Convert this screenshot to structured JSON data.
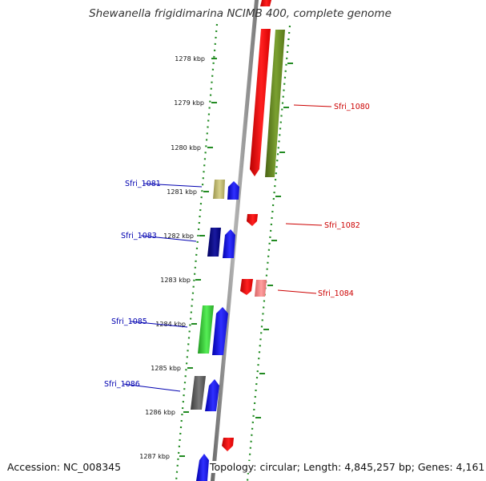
{
  "header": {
    "title": "Shewanella frigidimarina NCIMB 400, complete genome"
  },
  "footer": {
    "accession": "Accession: NC_008345",
    "topology": "Topology: circular; Length: 4,845,257 bp; Genes: 4,161"
  },
  "scale_marks": [
    {
      "id": "1278",
      "label": "1278 kbp"
    },
    {
      "id": "1279",
      "label": "1279 kbp"
    },
    {
      "id": "1280",
      "label": "1280 kbp"
    },
    {
      "id": "1281",
      "label": "1281 kbp"
    },
    {
      "id": "1282",
      "label": "1282 kbp"
    },
    {
      "id": "1283",
      "label": "1283 kbp"
    },
    {
      "id": "1284",
      "label": "1284 kbp"
    },
    {
      "id": "1285",
      "label": "1285 kbp"
    },
    {
      "id": "1286",
      "label": "1286 kbp"
    },
    {
      "id": "1287",
      "label": "1287 kbp"
    }
  ],
  "gene_labels": [
    {
      "id": "sfri-1080",
      "text": "Sfri_1080",
      "color": "#cc0000"
    },
    {
      "id": "sfri-1081",
      "text": "Sfri_1081",
      "color": "#0000b0"
    },
    {
      "id": "sfri-1082",
      "text": "Sfri_1082",
      "color": "#cc0000"
    },
    {
      "id": "sfri-1083",
      "text": "Sfri_1083",
      "color": "#0000b0"
    },
    {
      "id": "sfri-1084",
      "text": "Sfri_1084",
      "color": "#cc0000"
    },
    {
      "id": "sfri-1085",
      "text": "Sfri_1085",
      "color": "#0000b0"
    },
    {
      "id": "sfri-1086",
      "text": "Sfri_1086",
      "color": "#0000b0"
    }
  ],
  "colors": {
    "backbone": "#888888",
    "ruler": "#228b22",
    "forward_strand": "#ee1111",
    "reverse_strand": "#1111ee",
    "olive": "#6b8e23",
    "khaki": "#bdb76b",
    "navy": "#000080",
    "pink": "#f08080",
    "green": "#33cc33",
    "gray": "#555555"
  }
}
